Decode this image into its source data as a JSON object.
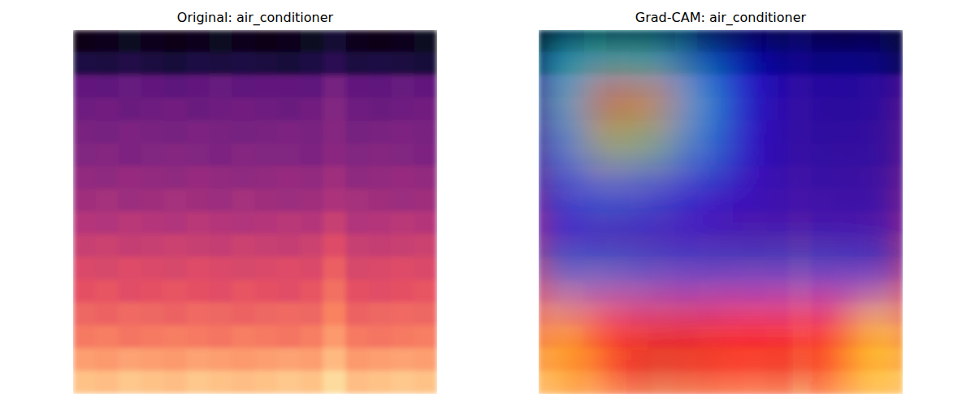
{
  "chart_data": [
    {
      "type": "heatmap",
      "title": "Original: air_conditioner",
      "tick_labels": false,
      "cells": [
        [
          0.04,
          0.05,
          0.06,
          0.05,
          0.04,
          0.05,
          0.06,
          0.05,
          0.04,
          0.05,
          0.06,
          0.1,
          0.05,
          0.04,
          0.05,
          0.06
        ],
        [
          0.13,
          0.12,
          0.14,
          0.12,
          0.11,
          0.13,
          0.12,
          0.13,
          0.12,
          0.11,
          0.13,
          0.16,
          0.12,
          0.13,
          0.12,
          0.11
        ],
        [
          0.3,
          0.29,
          0.31,
          0.3,
          0.28,
          0.3,
          0.31,
          0.29,
          0.3,
          0.3,
          0.29,
          0.35,
          0.3,
          0.29,
          0.31,
          0.3
        ],
        [
          0.33,
          0.34,
          0.32,
          0.33,
          0.34,
          0.32,
          0.33,
          0.34,
          0.33,
          0.32,
          0.34,
          0.38,
          0.33,
          0.32,
          0.33,
          0.34
        ],
        [
          0.36,
          0.35,
          0.37,
          0.36,
          0.35,
          0.37,
          0.36,
          0.35,
          0.36,
          0.37,
          0.36,
          0.39,
          0.35,
          0.36,
          0.37,
          0.36
        ],
        [
          0.38,
          0.39,
          0.37,
          0.38,
          0.39,
          0.38,
          0.37,
          0.39,
          0.38,
          0.38,
          0.37,
          0.4,
          0.38,
          0.39,
          0.38,
          0.37
        ],
        [
          0.42,
          0.41,
          0.43,
          0.42,
          0.41,
          0.43,
          0.42,
          0.41,
          0.42,
          0.43,
          0.42,
          0.45,
          0.41,
          0.42,
          0.43,
          0.42
        ],
        [
          0.45,
          0.46,
          0.44,
          0.45,
          0.46,
          0.45,
          0.44,
          0.46,
          0.45,
          0.44,
          0.45,
          0.48,
          0.46,
          0.45,
          0.44,
          0.45
        ],
        [
          0.5,
          0.49,
          0.51,
          0.5,
          0.49,
          0.51,
          0.5,
          0.49,
          0.5,
          0.51,
          0.5,
          0.55,
          0.49,
          0.5,
          0.51,
          0.5
        ],
        [
          0.55,
          0.56,
          0.54,
          0.55,
          0.56,
          0.55,
          0.54,
          0.56,
          0.55,
          0.54,
          0.56,
          0.61,
          0.55,
          0.54,
          0.55,
          0.56
        ],
        [
          0.6,
          0.59,
          0.61,
          0.6,
          0.59,
          0.61,
          0.6,
          0.59,
          0.6,
          0.61,
          0.6,
          0.66,
          0.59,
          0.6,
          0.61,
          0.6
        ],
        [
          0.63,
          0.64,
          0.62,
          0.63,
          0.64,
          0.63,
          0.62,
          0.64,
          0.63,
          0.62,
          0.64,
          0.7,
          0.63,
          0.62,
          0.63,
          0.64
        ],
        [
          0.68,
          0.67,
          0.69,
          0.68,
          0.67,
          0.69,
          0.68,
          0.67,
          0.68,
          0.69,
          0.68,
          0.74,
          0.67,
          0.68,
          0.69,
          0.68
        ],
        [
          0.72,
          0.73,
          0.71,
          0.72,
          0.73,
          0.72,
          0.71,
          0.73,
          0.72,
          0.71,
          0.73,
          0.79,
          0.72,
          0.71,
          0.72,
          0.73
        ],
        [
          0.8,
          0.79,
          0.81,
          0.8,
          0.79,
          0.81,
          0.8,
          0.79,
          0.8,
          0.81,
          0.8,
          0.86,
          0.79,
          0.8,
          0.81,
          0.8
        ],
        [
          0.88,
          0.87,
          0.89,
          0.88,
          0.87,
          0.89,
          0.88,
          0.87,
          0.88,
          0.89,
          0.88,
          0.93,
          0.87,
          0.88,
          0.89,
          0.88
        ]
      ]
    },
    {
      "type": "heatmap",
      "title": "Grad-CAM: air_conditioner",
      "tick_labels": false,
      "cells": [
        [
          0.35,
          0.4,
          0.38,
          0.25,
          0.12,
          0.05,
          0.05,
          0.05
        ],
        [
          0.4,
          0.72,
          0.68,
          0.35,
          0.15,
          0.06,
          0.05,
          0.05
        ],
        [
          0.3,
          0.55,
          0.5,
          0.3,
          0.12,
          0.06,
          0.05,
          0.05
        ],
        [
          0.2,
          0.25,
          0.22,
          0.15,
          0.1,
          0.07,
          0.06,
          0.06
        ],
        [
          0.12,
          0.1,
          0.1,
          0.1,
          0.08,
          0.08,
          0.08,
          0.08
        ],
        [
          0.25,
          0.25,
          0.22,
          0.2,
          0.2,
          0.2,
          0.2,
          0.18
        ],
        [
          0.7,
          0.85,
          0.9,
          0.9,
          0.88,
          0.88,
          0.85,
          0.65
        ],
        [
          0.72,
          0.88,
          0.92,
          0.9,
          0.88,
          0.9,
          0.85,
          0.68
        ]
      ]
    }
  ]
}
